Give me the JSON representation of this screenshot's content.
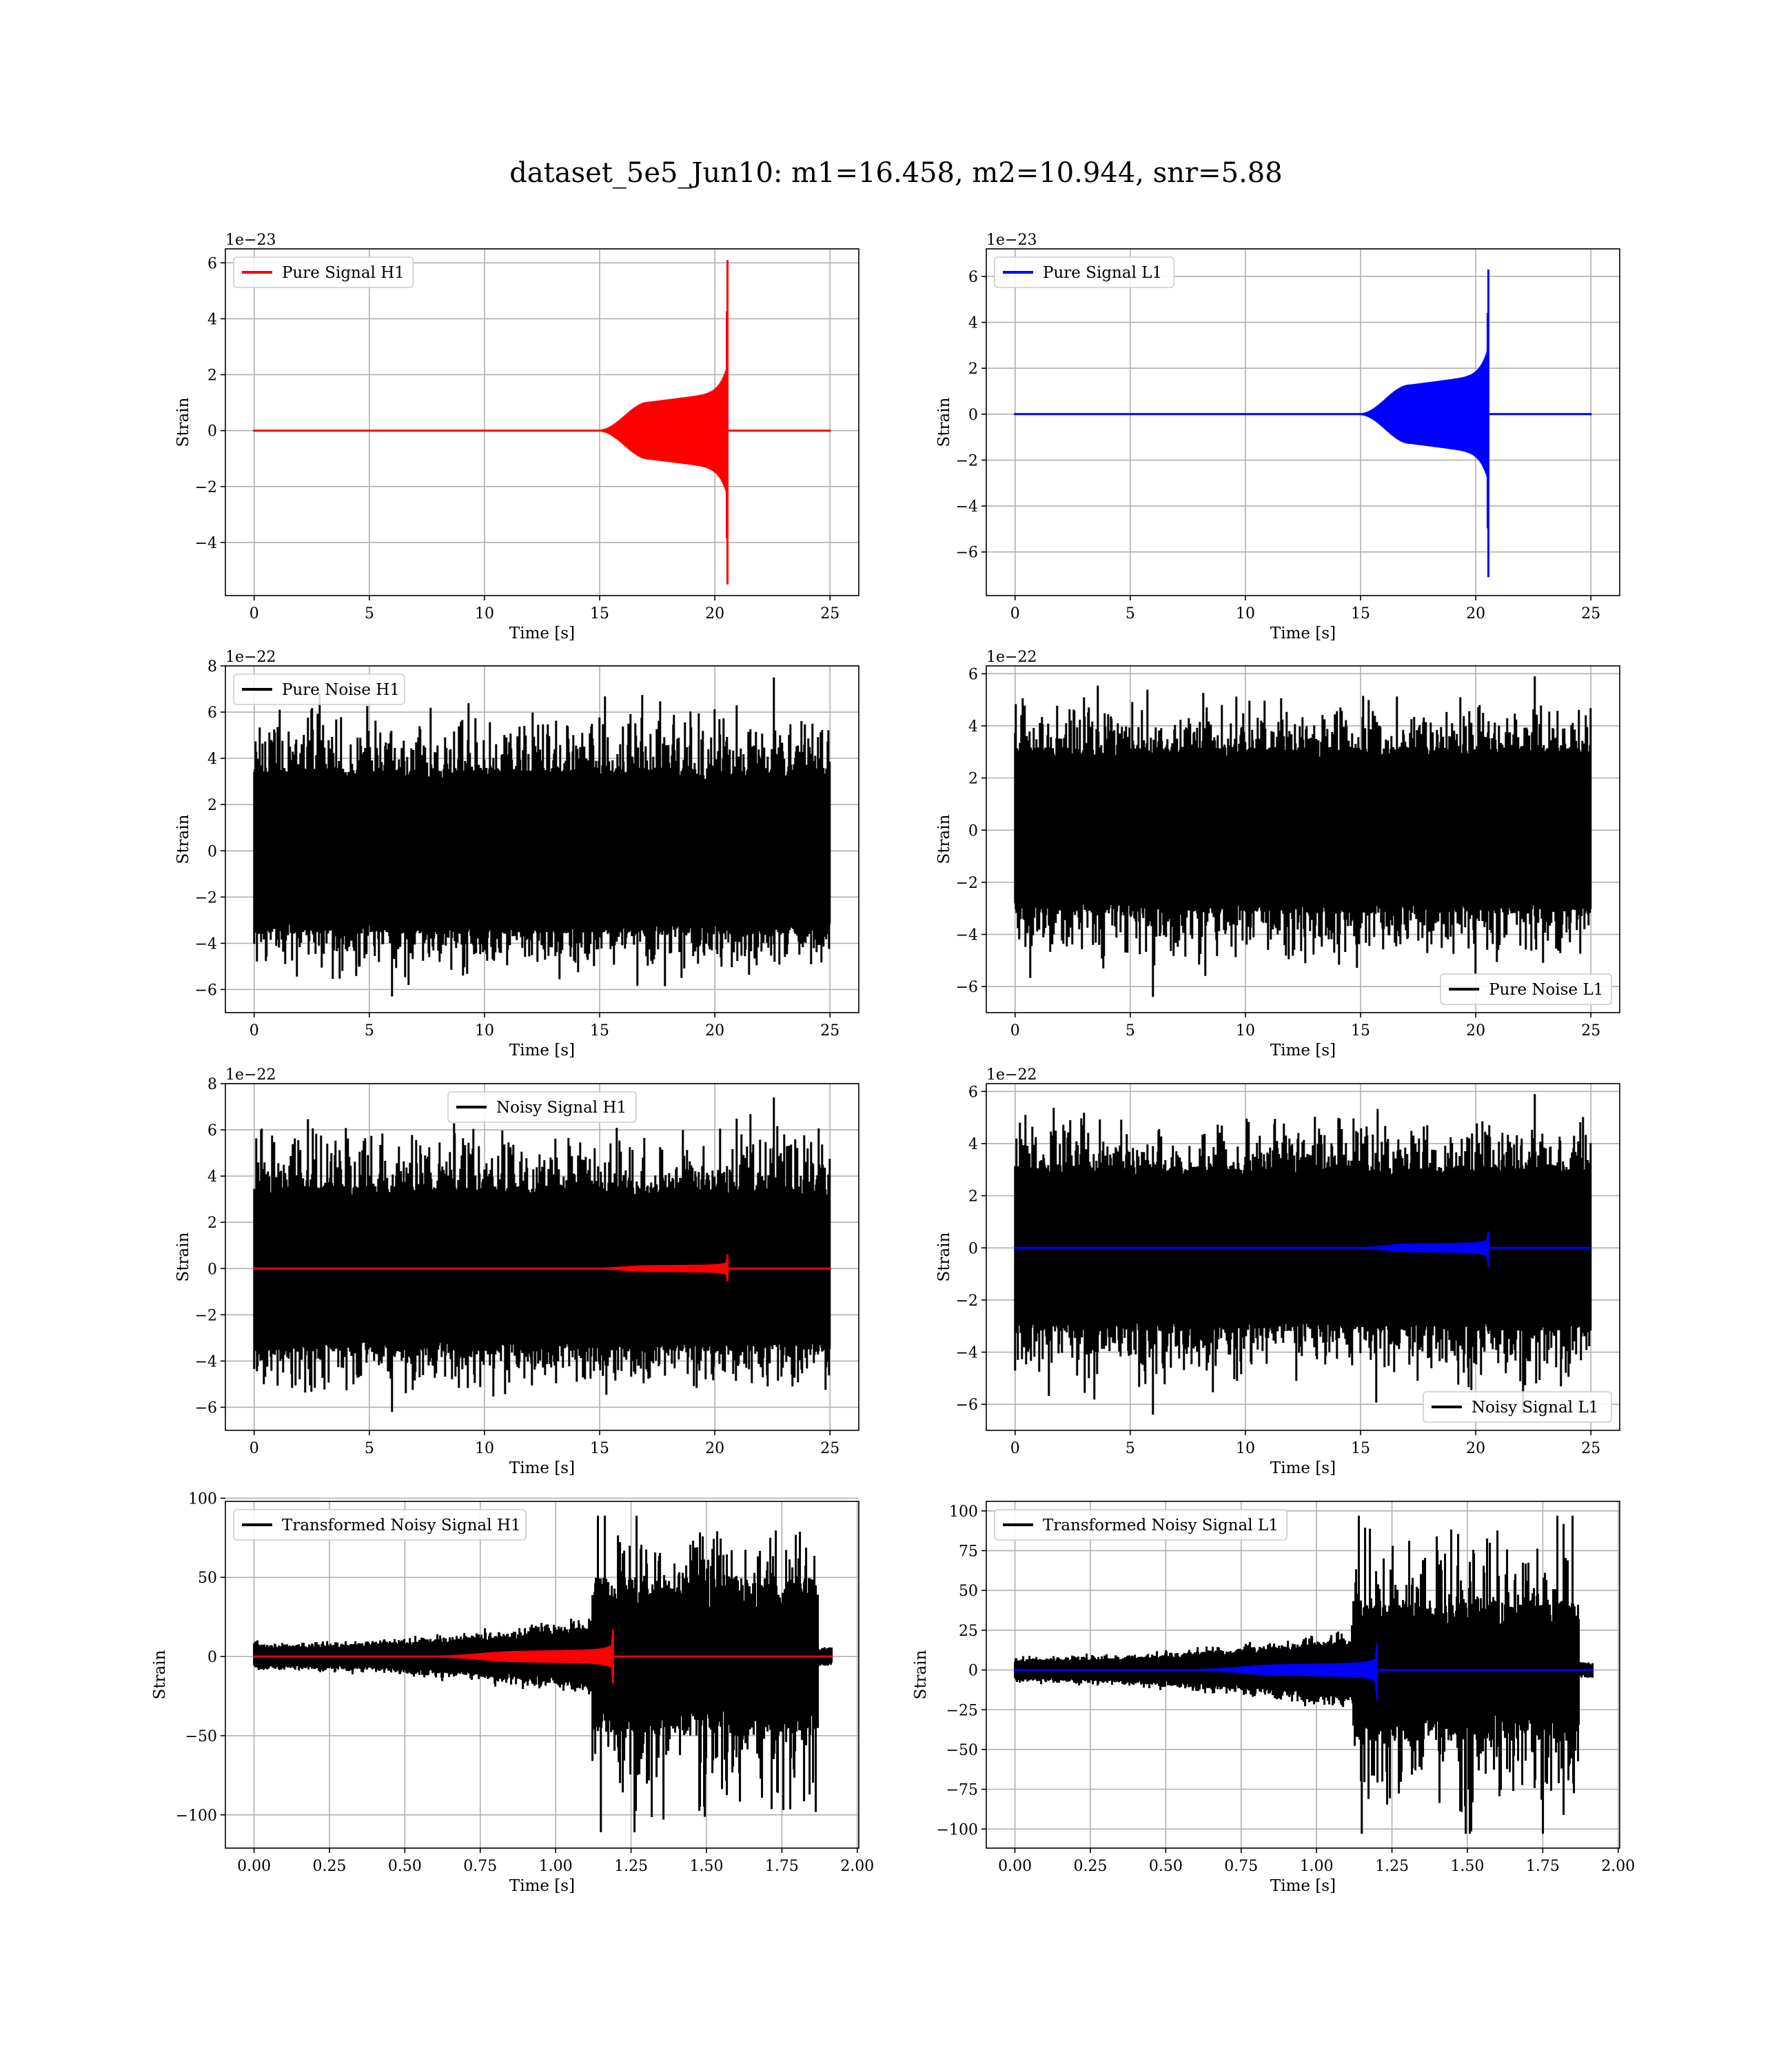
{
  "title": "dataset_5e5_Jun10: m1=16.458, m2=10.944, snr=5.88",
  "colors": {
    "H1": "#ff0000",
    "L1": "#0000ff",
    "noise": "#000000",
    "grid": "#b0b0b0",
    "spine": "#000000"
  },
  "chart_data": [
    {
      "id": "pure-signal-h1",
      "type": "line",
      "detector": "H1",
      "legend": "Pure Signal H1",
      "legend_loc": "upper left",
      "xlabel": "Time [s]",
      "ylabel": "Strain",
      "offset_text": "1e−23",
      "xlim": [
        -1.25,
        26.25
      ],
      "ylim": [
        -5.9,
        6.5
      ],
      "xticks": [
        0,
        5,
        10,
        15,
        20,
        25
      ],
      "xticklabels": [
        "0",
        "5",
        "10",
        "15",
        "20",
        "25"
      ],
      "yticks": [
        -4,
        -2,
        0,
        2,
        4,
        6
      ],
      "yticklabels": [
        "−4",
        "−2",
        "0",
        "2",
        "4",
        "6"
      ],
      "grid": true,
      "series": [
        {
          "name": "Pure Signal H1",
          "color": "#ff0000",
          "kind": "chirp",
          "x_start": 0,
          "x_end": 25,
          "onset": 15.0,
          "plateau": 17.2,
          "merger": 20.55,
          "plateau_amp": 1.0,
          "peak_pos": 6.1,
          "peak_neg": -5.5
        }
      ]
    },
    {
      "id": "pure-signal-l1",
      "type": "line",
      "detector": "L1",
      "legend": "Pure Signal L1",
      "legend_loc": "upper left",
      "xlabel": "Time [s]",
      "ylabel": "Strain",
      "offset_text": "1e−23",
      "xlim": [
        -1.25,
        26.25
      ],
      "ylim": [
        -7.9,
        7.2
      ],
      "xticks": [
        0,
        5,
        10,
        15,
        20,
        25
      ],
      "xticklabels": [
        "0",
        "5",
        "10",
        "15",
        "20",
        "25"
      ],
      "yticks": [
        -6,
        -4,
        -2,
        0,
        2,
        4,
        6
      ],
      "yticklabels": [
        "−6",
        "−4",
        "−2",
        "0",
        "2",
        "4",
        "6"
      ],
      "grid": true,
      "series": [
        {
          "name": "Pure Signal L1",
          "color": "#0000ff",
          "kind": "chirp",
          "x_start": 0,
          "x_end": 25,
          "onset": 15.0,
          "plateau": 17.2,
          "merger": 20.55,
          "plateau_amp": 1.25,
          "peak_pos": 6.3,
          "peak_neg": -7.1
        }
      ]
    },
    {
      "id": "pure-noise-h1",
      "type": "line",
      "detector": "H1",
      "legend": "Pure Noise H1",
      "legend_loc": "upper left",
      "xlabel": "Time [s]",
      "ylabel": "Strain",
      "offset_text": "1e−22",
      "xlim": [
        -1.25,
        26.25
      ],
      "ylim": [
        -7.0,
        8.0
      ],
      "xticks": [
        0,
        5,
        10,
        15,
        20,
        25
      ],
      "xticklabels": [
        "0",
        "5",
        "10",
        "15",
        "20",
        "25"
      ],
      "yticks": [
        -6,
        -4,
        -2,
        0,
        2,
        4,
        6,
        8
      ],
      "yticklabels": [
        "−6",
        "−4",
        "−2",
        "0",
        "2",
        "4",
        "6",
        "8"
      ],
      "grid": true,
      "series": [
        {
          "name": "Pure Noise H1",
          "color": "#000000",
          "kind": "noise",
          "x_start": 0,
          "x_end": 25,
          "core_hi": 3.6,
          "core_lo": -3.6,
          "max": 7.5,
          "min": -6.3
        }
      ]
    },
    {
      "id": "pure-noise-l1",
      "type": "line",
      "detector": "L1",
      "legend": "Pure Noise L1",
      "legend_loc": "lower right",
      "xlabel": "Time [s]",
      "ylabel": "Strain",
      "offset_text": "1e−22",
      "xlim": [
        -1.25,
        26.25
      ],
      "ylim": [
        -7.0,
        6.3
      ],
      "xticks": [
        0,
        5,
        10,
        15,
        20,
        25
      ],
      "xticklabels": [
        "0",
        "5",
        "10",
        "15",
        "20",
        "25"
      ],
      "yticks": [
        -6,
        -4,
        -2,
        0,
        2,
        4,
        6
      ],
      "yticklabels": [
        "−6",
        "−4",
        "−2",
        "0",
        "2",
        "4",
        "6"
      ],
      "grid": true,
      "series": [
        {
          "name": "Pure Noise L1",
          "color": "#000000",
          "kind": "noise",
          "x_start": 0,
          "x_end": 25,
          "core_hi": 3.2,
          "core_lo": -3.2,
          "max": 5.9,
          "min": -6.4
        }
      ]
    },
    {
      "id": "noisy-signal-h1",
      "type": "line",
      "detector": "H1",
      "legend": "Noisy Signal H1",
      "legend_loc": "upper center",
      "xlabel": "Time [s]",
      "ylabel": "Strain",
      "offset_text": "1e−22",
      "xlim": [
        -1.25,
        26.25
      ],
      "ylim": [
        -7.0,
        8.0
      ],
      "xticks": [
        0,
        5,
        10,
        15,
        20,
        25
      ],
      "xticklabels": [
        "0",
        "5",
        "10",
        "15",
        "20",
        "25"
      ],
      "yticks": [
        -6,
        -4,
        -2,
        0,
        2,
        4,
        6,
        8
      ],
      "yticklabels": [
        "−6",
        "−4",
        "−2",
        "0",
        "2",
        "4",
        "6",
        "8"
      ],
      "grid": true,
      "series": [
        {
          "name": "Noisy Signal H1",
          "color": "#000000",
          "kind": "noise",
          "x_start": 0,
          "x_end": 25,
          "core_hi": 3.6,
          "core_lo": -3.6,
          "max": 7.4,
          "min": -6.2
        },
        {
          "color": "#ff0000",
          "kind": "chirp",
          "x_start": 0,
          "x_end": 25,
          "onset": 15.0,
          "plateau": 17.2,
          "merger": 20.55,
          "plateau_amp": 0.1,
          "peak_pos": 0.61,
          "peak_neg": -0.55
        }
      ]
    },
    {
      "id": "noisy-signal-l1",
      "type": "line",
      "detector": "L1",
      "legend": "Noisy Signal L1",
      "legend_loc": "lower right",
      "xlabel": "Time [s]",
      "ylabel": "Strain",
      "offset_text": "1e−22",
      "xlim": [
        -1.25,
        26.25
      ],
      "ylim": [
        -7.0,
        6.3
      ],
      "xticks": [
        0,
        5,
        10,
        15,
        20,
        25
      ],
      "xticklabels": [
        "0",
        "5",
        "10",
        "15",
        "20",
        "25"
      ],
      "yticks": [
        -6,
        -4,
        -2,
        0,
        2,
        4,
        6
      ],
      "yticklabels": [
        "−6",
        "−4",
        "−2",
        "0",
        "2",
        "4",
        "6"
      ],
      "grid": true,
      "series": [
        {
          "name": "Noisy Signal L1",
          "color": "#000000",
          "kind": "noise",
          "x_start": 0,
          "x_end": 25,
          "core_hi": 3.2,
          "core_lo": -3.2,
          "max": 5.9,
          "min": -6.4
        },
        {
          "color": "#0000ff",
          "kind": "chirp",
          "x_start": 0,
          "x_end": 25,
          "onset": 15.0,
          "plateau": 17.2,
          "merger": 20.55,
          "plateau_amp": 0.125,
          "peak_pos": 0.63,
          "peak_neg": -0.71
        }
      ]
    },
    {
      "id": "transformed-noisy-signal-h1",
      "type": "line",
      "detector": "H1",
      "legend": "Transformed Noisy Signal H1",
      "legend_loc": "upper left",
      "xlabel": "Time [s]",
      "ylabel": "Strain",
      "offset_text": "",
      "xlim": [
        -0.095,
        2.005
      ],
      "ylim": [
        -121,
        98
      ],
      "xticks": [
        0,
        0.25,
        0.5,
        0.75,
        1.0,
        1.25,
        1.5,
        1.75,
        2.0
      ],
      "xticklabels": [
        "0.00",
        "0.25",
        "0.50",
        "0.75",
        "1.00",
        "1.25",
        "1.50",
        "1.75",
        "2.00"
      ],
      "yticks": [
        -100,
        -50,
        0,
        50,
        100
      ],
      "yticklabels": [
        "−100",
        "−50",
        "0",
        "50",
        "100"
      ],
      "grid": true,
      "series": [
        {
          "name": "Transformed Noisy Signal H1",
          "color": "#000000",
          "kind": "whitened",
          "x_start": 0,
          "x_end": 1.915,
          "ramp_start": 0.0,
          "ramp_end": 1.12,
          "amp_start": 6,
          "amp_ramp_end": 18,
          "jump": 1.12,
          "loud_end": 1.87,
          "loud_core": 50,
          "loud_max": 89,
          "loud_min": -111,
          "tail_amp": 6
        },
        {
          "color": "#ff0000",
          "kind": "chirp",
          "x_start": 0,
          "x_end": 1.915,
          "onset": 0.6,
          "plateau": 0.9,
          "merger": 1.19,
          "plateau_amp": 3,
          "peak_pos": 17,
          "peak_neg": -17
        }
      ]
    },
    {
      "id": "transformed-noisy-signal-l1",
      "type": "line",
      "detector": "L1",
      "legend": "Transformed Noisy Signal L1",
      "legend_loc": "upper left",
      "xlabel": "Time [s]",
      "ylabel": "Strain",
      "offset_text": "",
      "xlim": [
        -0.095,
        2.005
      ],
      "ylim": [
        -112,
        106
      ],
      "xticks": [
        0,
        0.25,
        0.5,
        0.75,
        1.0,
        1.25,
        1.5,
        1.75,
        2.0
      ],
      "xticklabels": [
        "0.00",
        "0.25",
        "0.50",
        "0.75",
        "1.00",
        "1.25",
        "1.50",
        "1.75",
        "2.00"
      ],
      "yticks": [
        -100,
        -75,
        -50,
        -25,
        0,
        25,
        50,
        75,
        100
      ],
      "yticklabels": [
        "−100",
        "−75",
        "−50",
        "−25",
        "0",
        "25",
        "50",
        "75",
        "100"
      ],
      "grid": true,
      "series": [
        {
          "name": "Transformed Noisy Signal L1",
          "color": "#000000",
          "kind": "whitened",
          "x_start": 0,
          "x_end": 1.915,
          "ramp_start": 0.0,
          "ramp_end": 1.12,
          "amp_start": 6,
          "amp_ramp_end": 18,
          "jump": 1.12,
          "loud_end": 1.87,
          "loud_core": 45,
          "loud_max": 97,
          "loud_min": -103,
          "tail_amp": 5
        },
        {
          "color": "#0000ff",
          "kind": "chirp",
          "x_start": 0,
          "x_end": 1.915,
          "onset": 0.6,
          "plateau": 0.9,
          "merger": 1.2,
          "plateau_amp": 3,
          "peak_pos": 17,
          "peak_neg": -18
        }
      ]
    }
  ]
}
